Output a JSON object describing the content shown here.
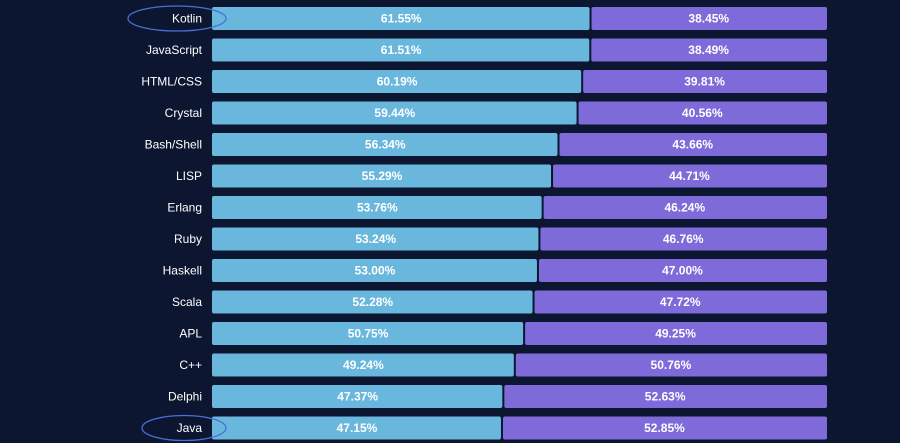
{
  "chart_data": {
    "type": "bar",
    "orientation": "horizontal",
    "stacked": true,
    "normalized_percent": true,
    "categories": [
      "Kotlin",
      "JavaScript",
      "HTML/CSS",
      "Crystal",
      "Bash/Shell",
      "LISP",
      "Erlang",
      "Ruby",
      "Haskell",
      "Scala",
      "APL",
      "C++",
      "Delphi",
      "Java"
    ],
    "series": [
      {
        "color": "#69b7dd",
        "values": [
          61.55,
          61.51,
          60.19,
          59.44,
          56.34,
          55.29,
          53.76,
          53.24,
          53.0,
          52.28,
          50.75,
          49.24,
          47.37,
          47.15
        ],
        "labels": [
          "61.55%",
          "61.51%",
          "60.19%",
          "59.44%",
          "56.34%",
          "55.29%",
          "53.76%",
          "53.24%",
          "53.00%",
          "52.28%",
          "50.75%",
          "49.24%",
          "47.37%",
          "47.15%"
        ]
      },
      {
        "color": "#7e6ad9",
        "values": [
          38.45,
          38.49,
          39.81,
          40.56,
          43.66,
          44.71,
          46.24,
          46.76,
          47.0,
          47.72,
          49.25,
          50.76,
          52.63,
          52.85
        ],
        "labels": [
          "38.45%",
          "38.49%",
          "39.81%",
          "40.56%",
          "43.66%",
          "44.71%",
          "46.24%",
          "46.76%",
          "47.00%",
          "47.72%",
          "49.25%",
          "50.76%",
          "52.63%",
          "52.85%"
        ]
      }
    ],
    "xlim": [
      0,
      100
    ],
    "highlighted_categories": [
      "Kotlin",
      "Java"
    ],
    "highlight_color": "#4a6fd6",
    "grid": false,
    "legend": "none"
  }
}
